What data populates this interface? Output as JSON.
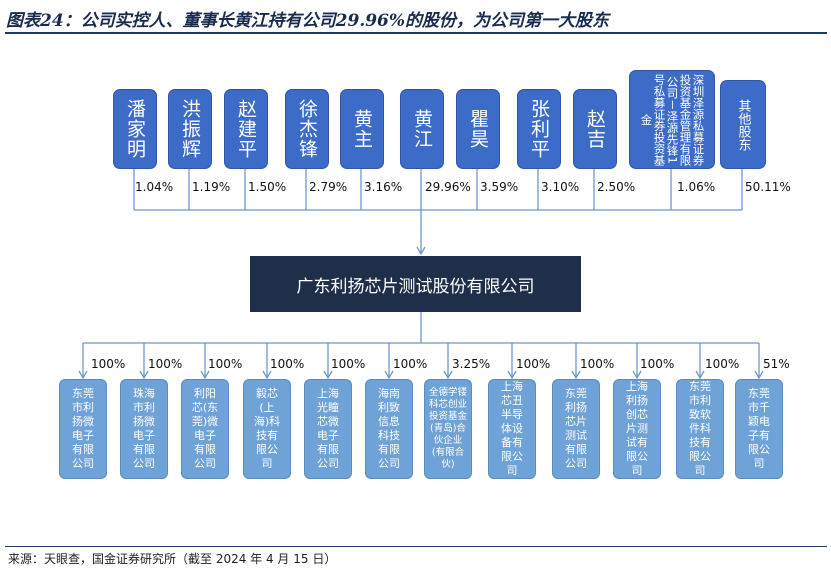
{
  "title": "图表24：公司实控人、董事长黄江持有公司29.96%的股份，为公司第一大股东",
  "company": "广东利扬芯片测试股份有限公司",
  "shareholders": [
    {
      "name": "潘家明",
      "pct": "1.04%"
    },
    {
      "name": "洪振辉",
      "pct": "1.19%"
    },
    {
      "name": "赵建平",
      "pct": "1.50%"
    },
    {
      "name": "徐杰锋",
      "pct": "2.79%"
    },
    {
      "name": "黄主",
      "pct": "3.16%"
    },
    {
      "name": "黄江",
      "pct": "29.96%"
    },
    {
      "name": "瞿昊",
      "pct": "3.59%"
    },
    {
      "name": "张利平",
      "pct": "3.10%"
    },
    {
      "name": "赵吉",
      "pct": "2.50%"
    },
    {
      "name": "深圳泽源私募证券投资基金管理有限公司－泽源先锋1号私募证券投资基金",
      "pct": "1.06%"
    },
    {
      "name": "其他股东",
      "pct": "50.11%"
    }
  ],
  "subsidiaries": [
    {
      "name": "东莞市利扬微电子有限公司",
      "pct": "100%"
    },
    {
      "name": "珠海市利扬微电子有限公司",
      "pct": "100%"
    },
    {
      "name": "利阳芯(东莞)微电子有限公司",
      "pct": "100%"
    },
    {
      "name": "毅芯(上海)科技有限公司",
      "pct": "100%"
    },
    {
      "name": "上海光瞳芯微电子有限公司",
      "pct": "100%"
    },
    {
      "name": "海南利致信息科技有限公司",
      "pct": "100%"
    },
    {
      "name": "全德学镂科芯创业投资基金(青岛)合伙企业(有限合伙)",
      "pct": "3.25%"
    },
    {
      "name": "上海芯丑半导体设备有限公司",
      "pct": "100%"
    },
    {
      "name": "东莞利扬芯片测试有限公司",
      "pct": "100%"
    },
    {
      "name": "上海利扬创芯片测试有限公司",
      "pct": "100%"
    },
    {
      "name": "东莞市利致软件科技有限公司",
      "pct": "100%"
    },
    {
      "name": "东莞市千颖电子有限公司",
      "pct": "51%"
    }
  ],
  "source": "来源：天眼查，国金证券研究所（截至 2024 年 4 月 15 日）",
  "colors": {
    "shareholder": "#3d6cc8",
    "subsidiary": "#6fa2d6",
    "company": "#1f2f4a",
    "line": "#6f95cf"
  }
}
